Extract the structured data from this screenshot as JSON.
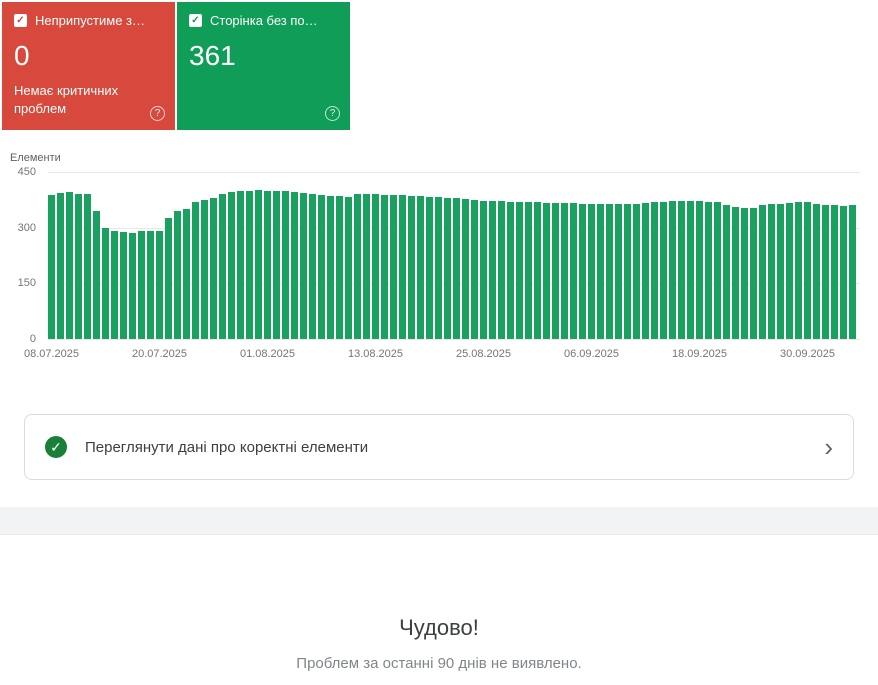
{
  "cards": {
    "error_card": {
      "label": "Неприпустиме з…",
      "check_glyph": "✓",
      "value": "0",
      "description": "Немає критичних проблем",
      "help_glyph": "?",
      "color": "#d6493c"
    },
    "valid_card": {
      "label": "Сторінка без по…",
      "check_glyph": "✓",
      "value": "361",
      "help_glyph": "?",
      "color": "#0f9d58"
    }
  },
  "chart_data": {
    "type": "bar",
    "title": "Елементи",
    "ylabel": "Елементи",
    "ylim": [
      0,
      450
    ],
    "y_ticks": [
      450,
      300,
      150,
      0
    ],
    "grid": true,
    "bar_color": "#1aa05f",
    "x_ticks": [
      {
        "label": "08.07.2025",
        "index": 0
      },
      {
        "label": "20.07.2025",
        "index": 12
      },
      {
        "label": "01.08.2025",
        "index": 24
      },
      {
        "label": "13.08.2025",
        "index": 36
      },
      {
        "label": "25.08.2025",
        "index": 48
      },
      {
        "label": "06.09.2025",
        "index": 60
      },
      {
        "label": "18.09.2025",
        "index": 72
      },
      {
        "label": "30.09.2025",
        "index": 84
      }
    ],
    "values": [
      388,
      393,
      395,
      392,
      390,
      345,
      300,
      292,
      288,
      285,
      290,
      292,
      290,
      325,
      345,
      350,
      370,
      375,
      380,
      390,
      395,
      398,
      400,
      402,
      400,
      398,
      398,
      395,
      393,
      390,
      388,
      385,
      385,
      383,
      390,
      392,
      390,
      388,
      388,
      387,
      385,
      385,
      383,
      382,
      380,
      380,
      378,
      375,
      373,
      372,
      372,
      370,
      370,
      368,
      368,
      367,
      367,
      366,
      366,
      365,
      365,
      365,
      364,
      364,
      363,
      365,
      366,
      368,
      370,
      372,
      372,
      373,
      372,
      370,
      368,
      360,
      355,
      353,
      352,
      360,
      363,
      365,
      366,
      368,
      368,
      365,
      362,
      360,
      359,
      361
    ]
  },
  "review_card": {
    "label": "Переглянути дані про коректні елементи",
    "check_glyph": "✓",
    "chevron_glyph": "›"
  },
  "success": {
    "title": "Чудово!",
    "subtitle": "Проблем за останні 90 днів не виявлено."
  }
}
